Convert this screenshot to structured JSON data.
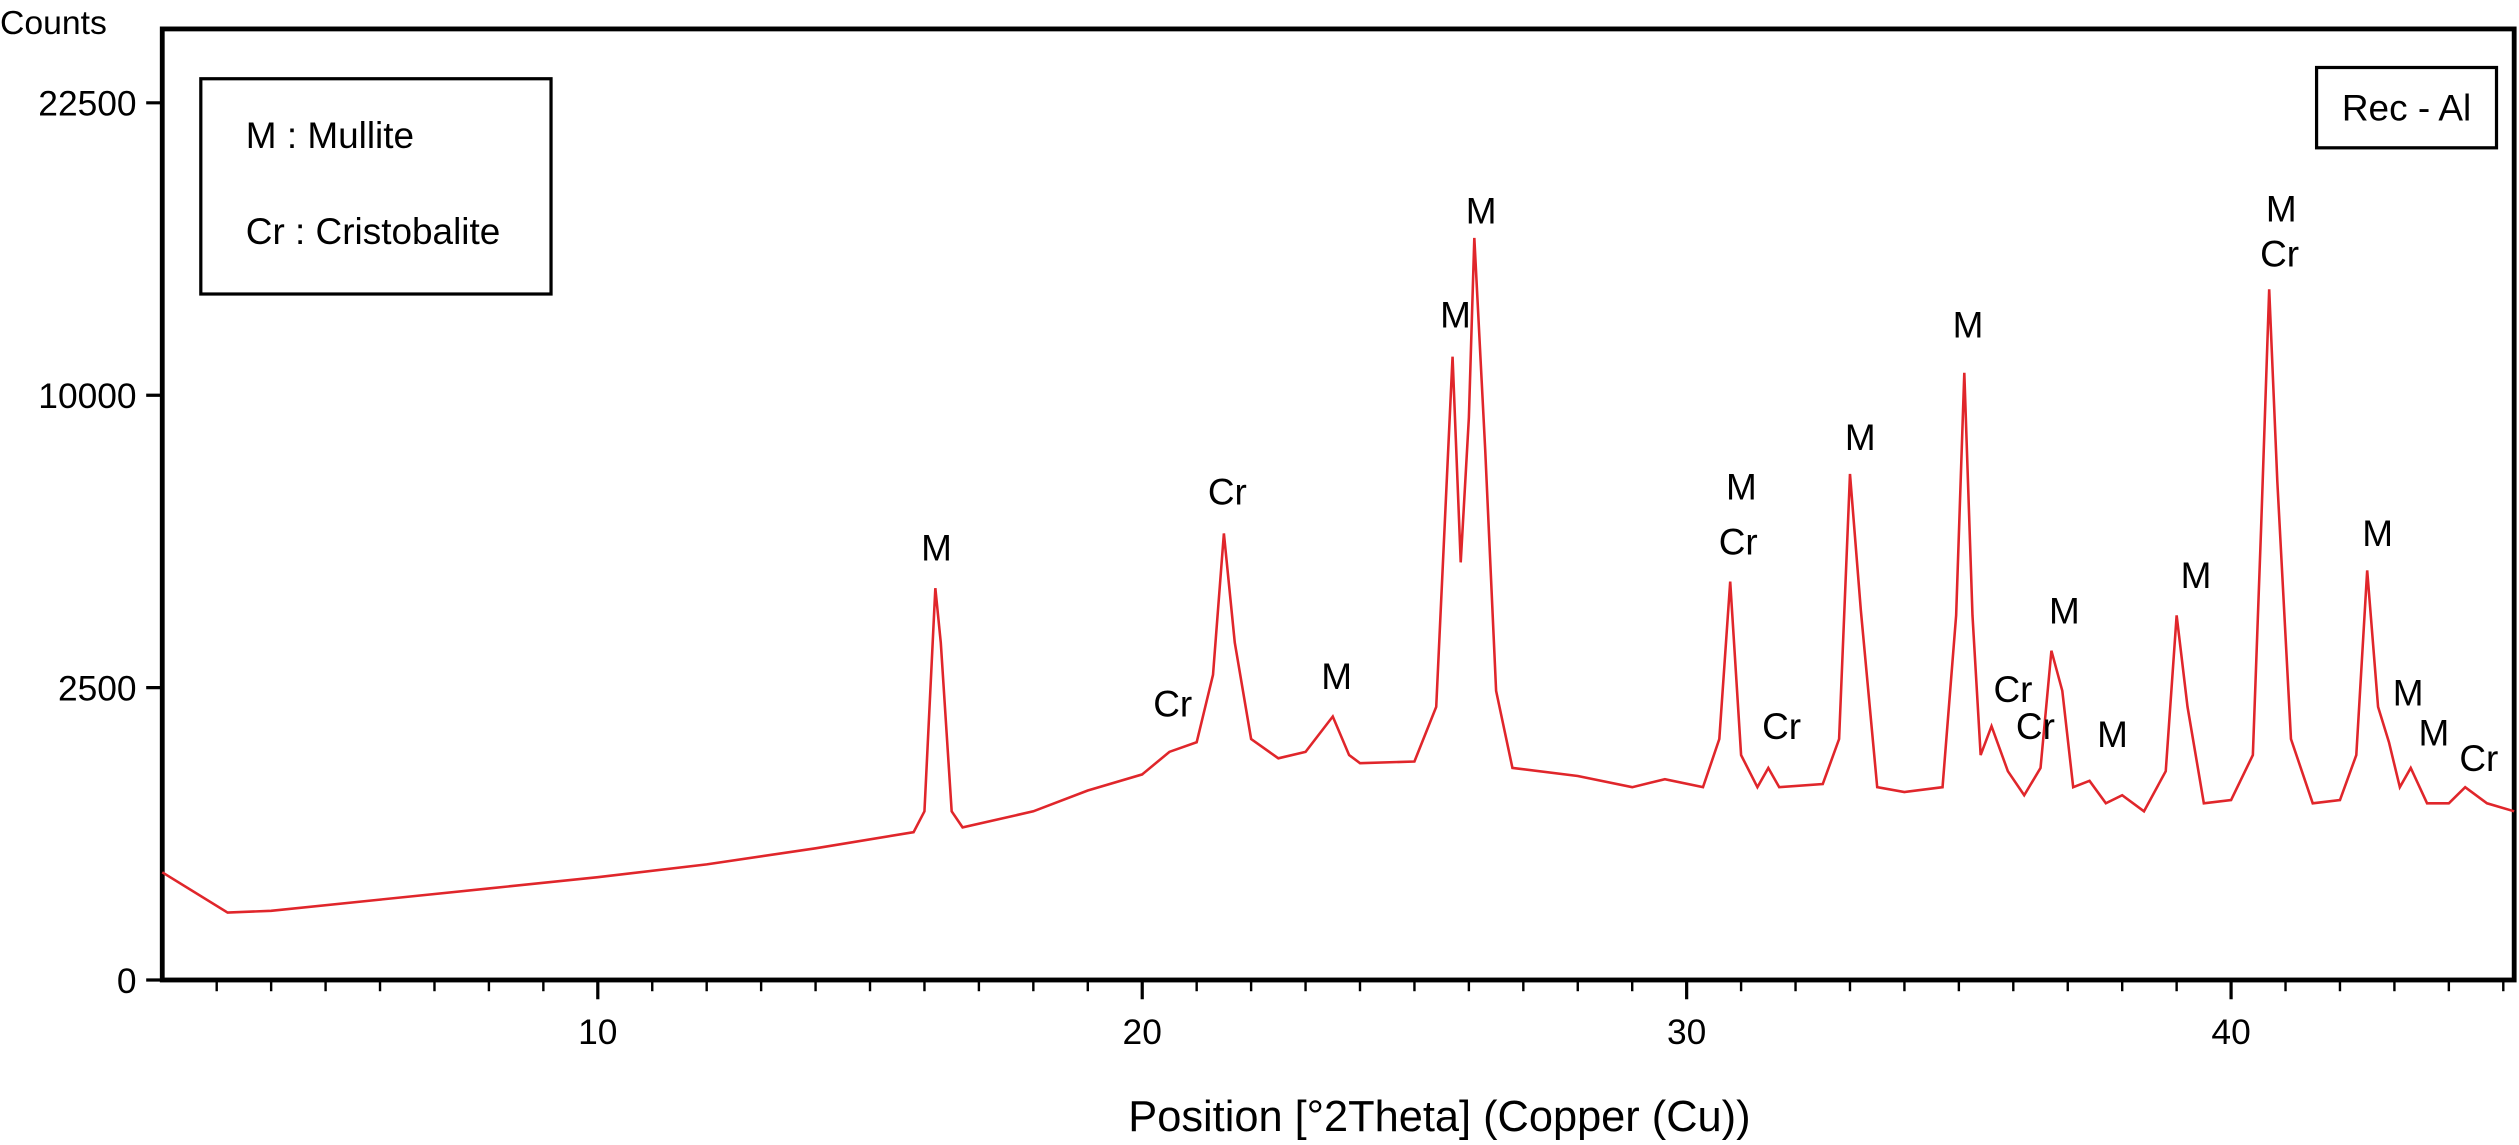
{
  "chart_data": {
    "type": "line",
    "y_label": "Counts",
    "x_label": "Position [°2Theta] (Copper (Cu))",
    "legend_entries": [
      "M : Mullite",
      "Cr : Cristobalite"
    ],
    "sample_label": "Rec - Al",
    "yscale": "sqrt",
    "xlim": [
      2,
      45.2
    ],
    "ylim": [
      0,
      26450
    ],
    "xticks": [
      10,
      20,
      30,
      40
    ],
    "xminorticks": [
      3,
      4,
      5,
      6,
      7,
      8,
      9,
      11,
      12,
      13,
      14,
      15,
      16,
      17,
      18,
      19,
      21,
      22,
      23,
      24,
      25,
      26,
      27,
      28,
      29,
      31,
      32,
      33,
      34,
      35,
      36,
      37,
      38,
      39,
      41,
      42,
      43,
      44,
      45
    ],
    "yticks": [
      0,
      2500,
      10000,
      22500
    ],
    "x": [
      2,
      3.2,
      4,
      6,
      8,
      10,
      12,
      14,
      15.8,
      16,
      16.2,
      16.3,
      16.5,
      16.7,
      18,
      19,
      20,
      20.5,
      21,
      21.3,
      21.5,
      21.7,
      22,
      22.5,
      23,
      23.5,
      23.8,
      24,
      25,
      25.4,
      25.7,
      25.85,
      26,
      26.1,
      26.3,
      26.5,
      26.8,
      28,
      29,
      29.6,
      30.3,
      30.6,
      30.8,
      31,
      31.3,
      31.5,
      31.7,
      32.5,
      32.8,
      33,
      33.2,
      33.5,
      34,
      34.7,
      34.95,
      35.1,
      35.25,
      35.4,
      35.6,
      35.9,
      36.2,
      36.5,
      36.7,
      36.9,
      37.1,
      37.4,
      37.7,
      38,
      38.4,
      38.8,
      39,
      39.2,
      39.5,
      40,
      40.4,
      40.55,
      40.7,
      40.85,
      41.1,
      41.5,
      42,
      42.3,
      42.5,
      42.7,
      42.9,
      43.1,
      43.3,
      43.6,
      44,
      44.3,
      44.7,
      45.2
    ],
    "series": [
      {
        "name": "Rec - Al",
        "color": "#e0262b",
        "values": [
          339,
          133,
          140,
          189,
          245,
          309,
          391,
          507,
          639,
          832,
          4490,
          3328,
          832,
          681,
          832,
          1050,
          1236,
          1522,
          1653,
          2724,
          5832,
          3328,
          1698,
          1437,
          1522,
          2030,
          1479,
          1375,
          1396,
          2181,
          11363,
          5100,
          9244,
          16104,
          8217,
          2445,
          1315,
          1217,
          1087,
          1179,
          1087,
          1698,
          4642,
          1479,
          1087,
          1315,
          1087,
          1123,
          1698,
          7487,
          3992,
          1087,
          1033,
          1087,
          3888,
          10780,
          3888,
          1479,
          1884,
          1275,
          998,
          1315,
          3171,
          2445,
          1087,
          1160,
          913,
          998,
          832,
          1275,
          3888,
          2181,
          913,
          947,
          1479,
          5916,
          13950,
          7252,
          1698,
          913,
          947,
          1479,
          4906,
          2181,
          1653,
          1087,
          1315,
          913,
          913,
          1087,
          913,
          832
        ]
      }
    ],
    "annotations": [
      "M",
      "Cr",
      "Cr",
      "M",
      "M",
      "M",
      "M",
      "Cr",
      "Cr",
      "M",
      "M",
      "Cr",
      "Cr",
      "M",
      "M",
      "M",
      "M",
      "Cr",
      "M",
      "M",
      "M",
      "Cr"
    ]
  }
}
